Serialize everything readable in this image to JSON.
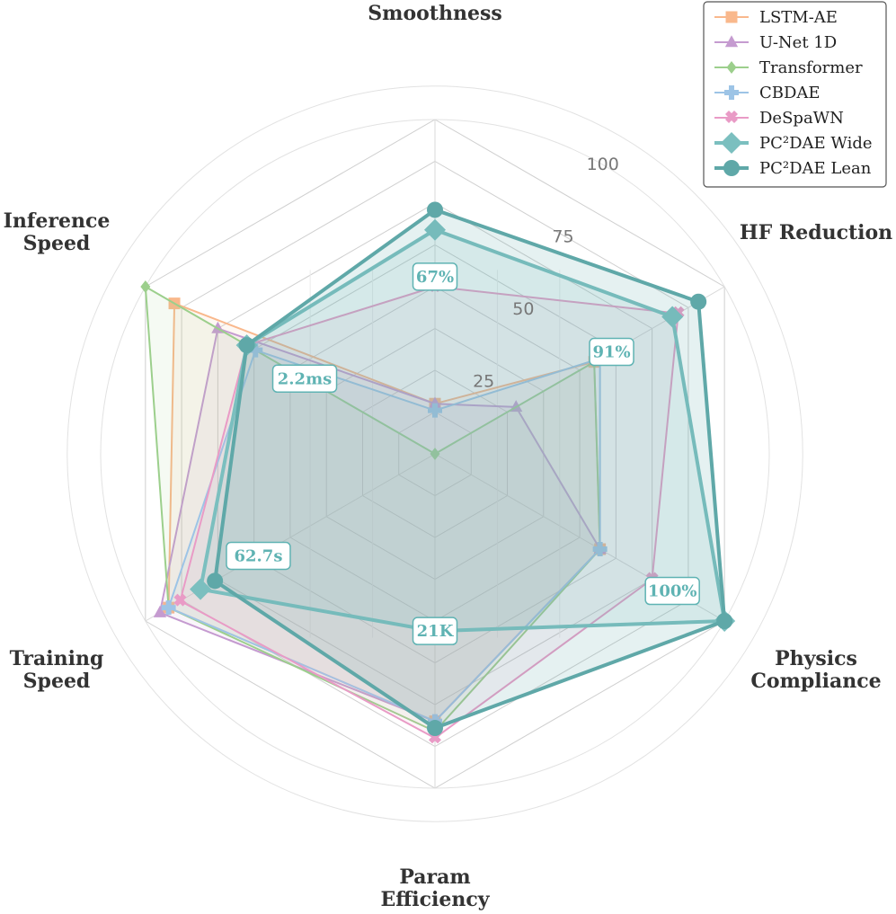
{
  "chart_data": {
    "type": "radar",
    "axes": [
      "Smoothness",
      "HF Reduction",
      "Physics\nCompliance",
      "Param\nEfficiency",
      "Training\nSpeed",
      "Inference\nSpeed"
    ],
    "rlim": [
      0,
      100
    ],
    "rticks": [
      25,
      50,
      75,
      100
    ],
    "grid": true,
    "legend_position": "top-right",
    "series": [
      {
        "name": "LSTM-AE",
        "color": "#f9b88c",
        "marker": "square",
        "values": [
          15,
          55,
          57,
          80,
          92,
          90
        ]
      },
      {
        "name": "U-Net 1D",
        "color": "#c59bd0",
        "marker": "triangle",
        "values": [
          15,
          28,
          57,
          80,
          95,
          75
        ]
      },
      {
        "name": "Transformer",
        "color": "#9ccf8c",
        "marker": "diamond",
        "values": [
          0,
          55,
          57,
          83,
          92,
          100
        ]
      },
      {
        "name": "CBDAE",
        "color": "#9dc4e6",
        "marker": "plus",
        "values": [
          13,
          57,
          57,
          80,
          92,
          62
        ]
      },
      {
        "name": "DeSpaWN",
        "color": "#e99bc6",
        "marker": "x",
        "values": [
          50,
          84,
          75,
          85,
          88,
          65
        ]
      },
      {
        "name": "PC²DAE Wide",
        "color": "#7bbfbf",
        "marker": "diamond-large",
        "values": [
          67,
          82,
          100,
          53,
          81,
          65
        ]
      },
      {
        "name": "PC²DAE Lean",
        "color": "#5fa8a8",
        "marker": "circle",
        "values": [
          73,
          91,
          100,
          82,
          76,
          65
        ]
      }
    ],
    "annotations": [
      {
        "axis": "Smoothness",
        "text": "67%",
        "r": 53
      },
      {
        "axis": "HF Reduction",
        "text": "91%",
        "r": 61
      },
      {
        "axis": "Physics\nCompliance",
        "text": "100%",
        "r": 82
      },
      {
        "axis": "Param\nEfficiency",
        "text": "21K",
        "r": 53
      },
      {
        "axis": "Training\nSpeed",
        "text": "62.7s",
        "r": 61
      },
      {
        "axis": "Inference\nSpeed",
        "text": "2.2ms",
        "r": 45
      }
    ],
    "annotation_color": "#5fb3b3"
  }
}
